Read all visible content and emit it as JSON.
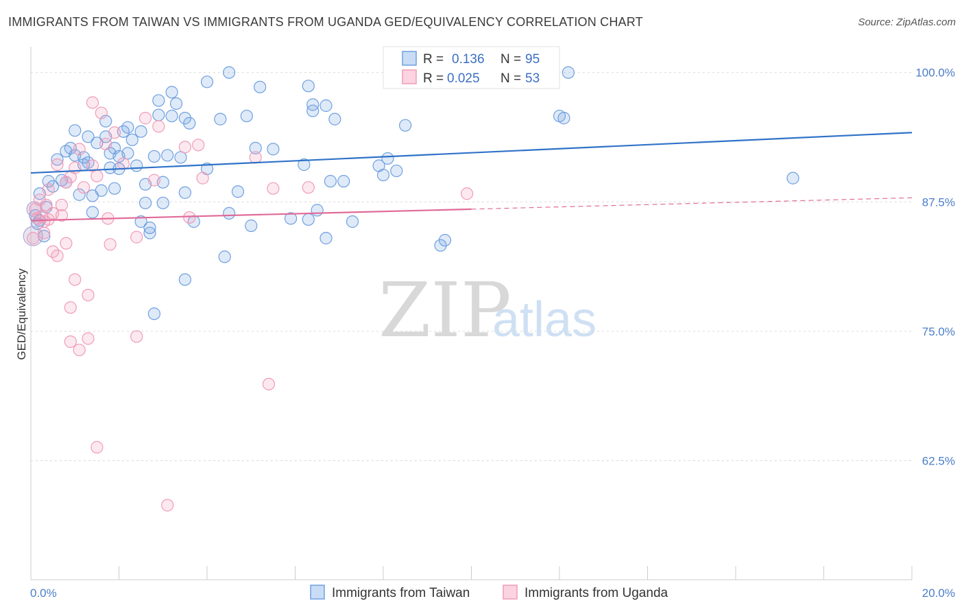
{
  "header": {
    "title": "IMMIGRANTS FROM TAIWAN VS IMMIGRANTS FROM UGANDA GED/EQUIVALENCY CORRELATION CHART",
    "source": "Source: ZipAtlas.com"
  },
  "watermark": {
    "zip": "ZIP",
    "atlas": "atlas"
  },
  "chart_data": {
    "type": "scatter",
    "title": "IMMIGRANTS FROM TAIWAN VS IMMIGRANTS FROM UGANDA GED/EQUIVALENCY CORRELATION CHART",
    "xlabel": "",
    "ylabel": "GED/Equivalency",
    "xlim": [
      0,
      20
    ],
    "ylim": [
      51,
      102.5
    ],
    "y_ticks": [
      {
        "value": 100,
        "label": "100.0%"
      },
      {
        "value": 87.5,
        "label": "87.5%"
      },
      {
        "value": 75,
        "label": "75.0%"
      },
      {
        "value": 62.5,
        "label": "62.5%"
      }
    ],
    "x_ticks": [
      {
        "value": 0,
        "label": "0.0%"
      },
      {
        "value": 20,
        "label": "20.0%"
      }
    ],
    "legend_stats": [
      {
        "r_label": "R =",
        "r_value": "0.136",
        "n_label": "N =",
        "n_value": "95",
        "color": "#6f9fe0"
      },
      {
        "r_label": "R =",
        "r_value": "0.025",
        "n_label": "N =",
        "n_value": "53",
        "color": "#f09bb8"
      }
    ],
    "series": [
      {
        "name": "Immigrants from Taiwan",
        "color": "#6f9fe0",
        "line_color": "#2f72c8",
        "trend": {
          "x": [
            0,
            20
          ],
          "y": [
            90.3,
            94.2
          ]
        },
        "points": [
          [
            0.1,
            86.2
          ],
          [
            0.2,
            88.3
          ],
          [
            0.2,
            85.7
          ],
          [
            0.3,
            84.2
          ],
          [
            0.4,
            89.5
          ],
          [
            0.5,
            89.0
          ],
          [
            0.6,
            91.6
          ],
          [
            0.7,
            89.6
          ],
          [
            0.8,
            89.4
          ],
          [
            0.8,
            92.4
          ],
          [
            0.9,
            92.7
          ],
          [
            1.0,
            92.0
          ],
          [
            1.0,
            94.4
          ],
          [
            1.1,
            88.2
          ],
          [
            1.2,
            91.1
          ],
          [
            1.2,
            91.8
          ],
          [
            1.3,
            91.3
          ],
          [
            1.3,
            93.8
          ],
          [
            1.4,
            88.1
          ],
          [
            1.4,
            86.5
          ],
          [
            1.5,
            93.2
          ],
          [
            1.6,
            88.6
          ],
          [
            1.7,
            93.8
          ],
          [
            1.7,
            95.3
          ],
          [
            1.8,
            92.2
          ],
          [
            1.8,
            90.8
          ],
          [
            1.9,
            92.7
          ],
          [
            2.0,
            91.9
          ],
          [
            2.0,
            90.7
          ],
          [
            2.1,
            94.3
          ],
          [
            2.2,
            92.2
          ],
          [
            2.2,
            94.7
          ],
          [
            2.3,
            93.5
          ],
          [
            2.4,
            91.0
          ],
          [
            2.5,
            94.3
          ],
          [
            2.5,
            85.6
          ],
          [
            2.6,
            87.4
          ],
          [
            2.7,
            84.5
          ],
          [
            2.7,
            85.0
          ],
          [
            2.8,
            91.9
          ],
          [
            2.8,
            76.7
          ],
          [
            2.9,
            95.9
          ],
          [
            2.9,
            97.3
          ],
          [
            3.0,
            89.4
          ],
          [
            3.0,
            87.4
          ],
          [
            3.1,
            92.0
          ],
          [
            3.2,
            95.8
          ],
          [
            3.2,
            98.1
          ],
          [
            3.3,
            97.0
          ],
          [
            3.4,
            91.8
          ],
          [
            3.5,
            88.4
          ],
          [
            3.5,
            80.0
          ],
          [
            3.5,
            95.6
          ],
          [
            3.6,
            95.1
          ],
          [
            3.7,
            85.6
          ],
          [
            4.0,
            99.1
          ],
          [
            4.0,
            90.7
          ],
          [
            4.3,
            95.5
          ],
          [
            4.4,
            82.2
          ],
          [
            4.5,
            86.4
          ],
          [
            4.5,
            100.0
          ],
          [
            4.7,
            88.5
          ],
          [
            4.9,
            95.8
          ],
          [
            5.1,
            92.7
          ],
          [
            5.2,
            98.6
          ],
          [
            5.5,
            92.6
          ],
          [
            5.9,
            85.9
          ],
          [
            6.2,
            91.1
          ],
          [
            6.3,
            98.7
          ],
          [
            6.3,
            85.8
          ],
          [
            6.4,
            96.3
          ],
          [
            6.4,
            96.9
          ],
          [
            6.5,
            86.7
          ],
          [
            6.7,
            96.8
          ],
          [
            6.7,
            84.0
          ],
          [
            6.8,
            89.5
          ],
          [
            6.9,
            95.5
          ],
          [
            7.1,
            89.5
          ],
          [
            7.3,
            85.6
          ],
          [
            7.9,
            91.0
          ],
          [
            8.0,
            90.1
          ],
          [
            8.1,
            91.7
          ],
          [
            8.3,
            90.5
          ],
          [
            8.5,
            94.9
          ],
          [
            9.3,
            83.3
          ],
          [
            9.4,
            83.8
          ],
          [
            12.2,
            100.0
          ],
          [
            12.0,
            95.8
          ],
          [
            12.1,
            95.6
          ],
          [
            17.3,
            89.8
          ],
          [
            0.15,
            85.4
          ],
          [
            0.35,
            87.0
          ],
          [
            1.9,
            88.8
          ],
          [
            2.6,
            89.2
          ],
          [
            5.0,
            85.2
          ]
        ]
      },
      {
        "name": "Immigrants from Uganda",
        "color": "#f09bb8",
        "line_color": "#e06b98",
        "trend": {
          "x": [
            0,
            10
          ],
          "y": [
            85.7,
            86.8
          ]
        },
        "trend_dashed": {
          "x": [
            10,
            20
          ],
          "y": [
            86.8,
            87.9
          ]
        },
        "points": [
          [
            0.1,
            86.8
          ],
          [
            0.15,
            85.9
          ],
          [
            0.2,
            87.7
          ],
          [
            0.25,
            86.1
          ],
          [
            0.3,
            85.6
          ],
          [
            0.35,
            87.2
          ],
          [
            0.4,
            85.8
          ],
          [
            0.4,
            88.7
          ],
          [
            0.5,
            82.7
          ],
          [
            0.5,
            86.4
          ],
          [
            0.6,
            91.1
          ],
          [
            0.6,
            82.3
          ],
          [
            0.7,
            87.2
          ],
          [
            0.7,
            86.2
          ],
          [
            0.8,
            89.4
          ],
          [
            0.8,
            83.5
          ],
          [
            0.9,
            89.9
          ],
          [
            0.9,
            74.0
          ],
          [
            0.9,
            77.3
          ],
          [
            1.0,
            90.8
          ],
          [
            1.0,
            80.0
          ],
          [
            1.1,
            73.2
          ],
          [
            1.1,
            92.6
          ],
          [
            1.2,
            88.9
          ],
          [
            1.3,
            78.5
          ],
          [
            1.3,
            74.3
          ],
          [
            1.4,
            91.0
          ],
          [
            1.4,
            97.1
          ],
          [
            1.5,
            90.0
          ],
          [
            1.5,
            63.8
          ],
          [
            1.6,
            96.1
          ],
          [
            1.7,
            93.1
          ],
          [
            1.75,
            85.9
          ],
          [
            1.8,
            83.4
          ],
          [
            1.9,
            94.2
          ],
          [
            2.1,
            91.2
          ],
          [
            2.4,
            74.5
          ],
          [
            2.4,
            84.1
          ],
          [
            2.6,
            95.6
          ],
          [
            2.8,
            89.6
          ],
          [
            2.9,
            94.8
          ],
          [
            3.1,
            58.2
          ],
          [
            3.5,
            92.8
          ],
          [
            3.6,
            86.0
          ],
          [
            3.8,
            93.0
          ],
          [
            3.9,
            89.8
          ],
          [
            5.1,
            91.8
          ],
          [
            5.4,
            69.9
          ],
          [
            5.5,
            88.8
          ],
          [
            6.3,
            88.9
          ],
          [
            9.9,
            88.3
          ],
          [
            0.05,
            84.0
          ],
          [
            0.3,
            84.5
          ]
        ]
      }
    ]
  }
}
